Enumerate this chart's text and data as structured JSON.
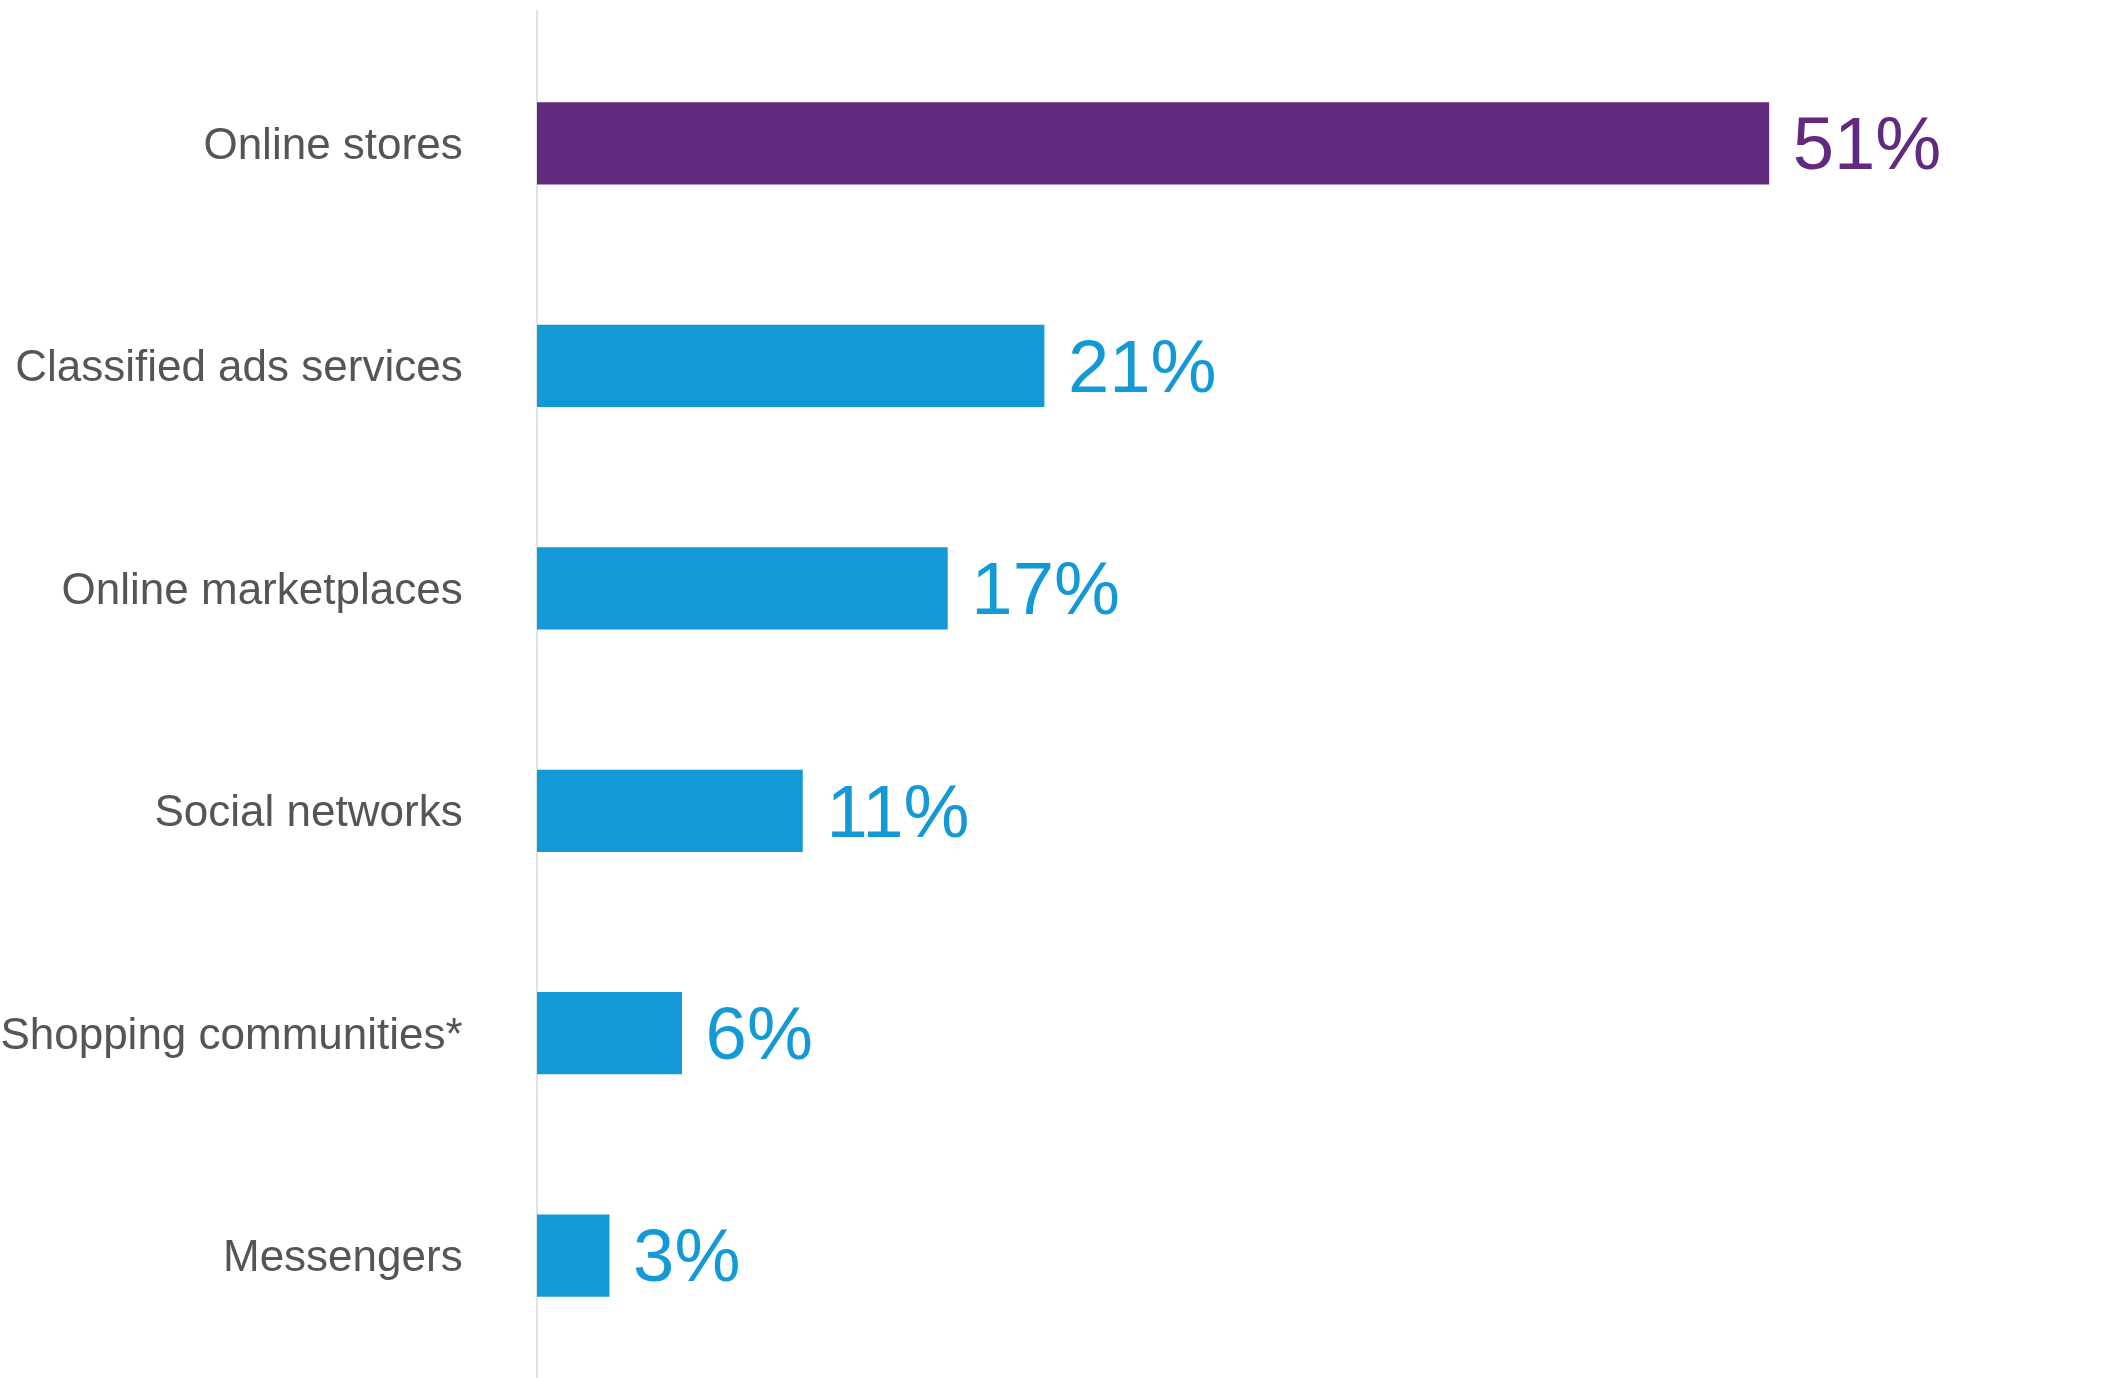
{
  "chart_data": {
    "type": "bar",
    "orientation": "horizontal",
    "categories": [
      "Online stores",
      "Classified ads services",
      "Online marketplaces",
      "Social networks",
      "Shopping communities*",
      "Messengers"
    ],
    "values": [
      51,
      21,
      17,
      11,
      6,
      3
    ],
    "colors": [
      "#612a7e",
      "#139ad6",
      "#139ad6",
      "#139ad6",
      "#139ad6",
      "#139ad6"
    ],
    "value_labels": [
      "51%",
      "21%",
      "17%",
      "11%",
      "6%",
      "3%"
    ]
  }
}
